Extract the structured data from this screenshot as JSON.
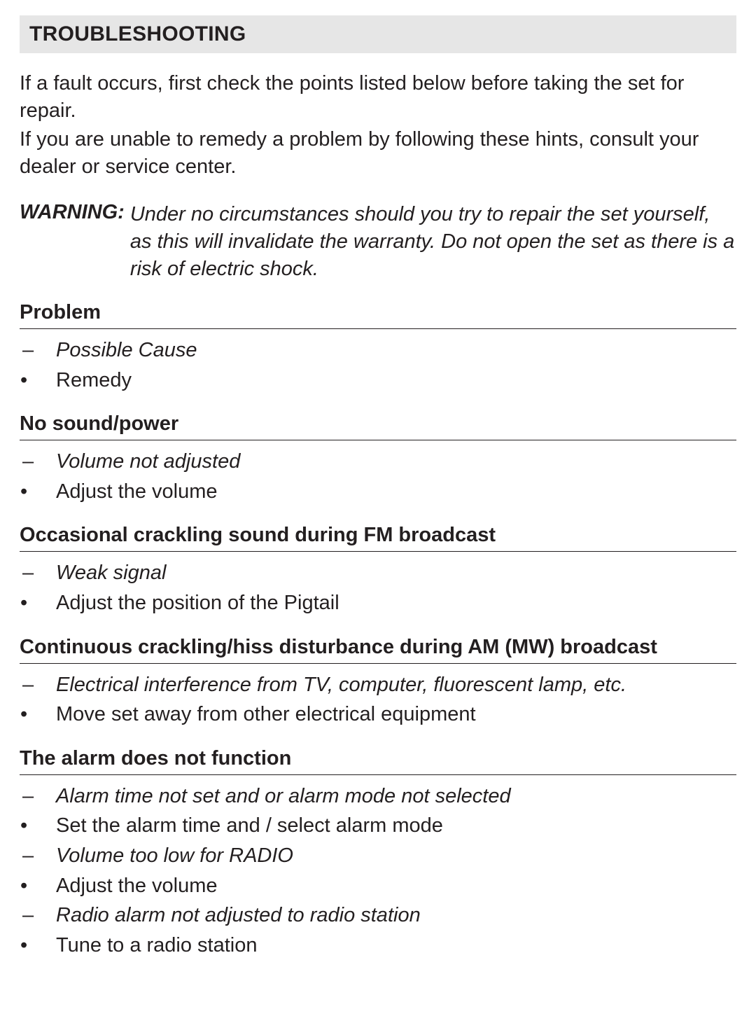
{
  "colors": {
    "text": "#231f20",
    "header_bg": "#e6e6e6",
    "rule": "#231f20",
    "page_bg": "#ffffff"
  },
  "typography": {
    "title_fontsize": 30,
    "body_fontsize": 29,
    "heading_fontsize": 29,
    "title_weight": 800,
    "heading_weight": 800,
    "body_weight": 400,
    "font_family": "Helvetica Neue Condensed"
  },
  "section_title": "TROUBLESHOOTING",
  "intro_lines": [
    "If a fault occurs, first check the points listed below before taking the set for repair.",
    "If you are unable to remedy a problem by following these hints, consult your dealer or service center."
  ],
  "warning": {
    "label": "WARNING:",
    "text": "Under no circumstances should you try to repair the set yourself, as this will invalidate the warranty. Do not open the set as there is a risk of electric shock."
  },
  "markers": {
    "cause": "–",
    "remedy": "•"
  },
  "problems": [
    {
      "heading": "Problem",
      "items": [
        {
          "type": "cause",
          "text": "Possible Cause"
        },
        {
          "type": "remedy",
          "text": "Remedy"
        }
      ]
    },
    {
      "heading": "No sound/power",
      "items": [
        {
          "type": "cause",
          "text": "Volume not adjusted"
        },
        {
          "type": "remedy",
          "text": "Adjust the volume"
        }
      ]
    },
    {
      "heading": "Occasional crackling sound during FM broadcast",
      "items": [
        {
          "type": "cause",
          "text": "Weak signal"
        },
        {
          "type": "remedy",
          "text": "Adjust the position of the Pigtail"
        }
      ]
    },
    {
      "heading": "Continuous crackling/hiss disturbance during AM (MW) broadcast",
      "items": [
        {
          "type": "cause",
          "text": "Electrical interference from TV, computer, fluorescent lamp, etc."
        },
        {
          "type": "remedy",
          "text": "Move set away from other electrical equipment"
        }
      ]
    },
    {
      "heading": "The alarm does not function",
      "items": [
        {
          "type": "cause",
          "text": "Alarm time not set and or alarm mode not selected"
        },
        {
          "type": "remedy",
          "text": "Set the alarm time and / select alarm mode"
        },
        {
          "type": "cause",
          "text": "Volume too low for RADIO"
        },
        {
          "type": "remedy",
          "text": "Adjust the volume"
        },
        {
          "type": "cause",
          "text": "Radio alarm not adjusted to radio station"
        },
        {
          "type": "remedy",
          "text": "Tune to a radio station"
        }
      ]
    }
  ]
}
